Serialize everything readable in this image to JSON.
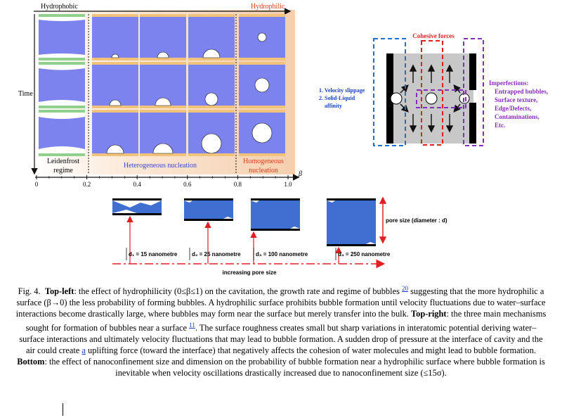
{
  "top_left": {
    "label_left": "Hydrophobic",
    "label_right": "Hydrophilic",
    "y_label": "Time",
    "regimes": [
      "Leidenfrost regime",
      "Heterogeneous nucleation",
      "Homogeneous nucleation"
    ],
    "axis_ticks": [
      "0",
      "0.2",
      "0.4",
      "0.6",
      "0.8",
      "1.0"
    ],
    "axis_symbol": "β"
  },
  "top_right": {
    "title": "Cohesive forces",
    "left_notes": [
      "1. Velocity slippage",
      "2. Solid-Liquid",
      "affinity"
    ],
    "imperfections_title": "Imperfections:",
    "imperfections": [
      "Entrapped bubbles,",
      "Surface texture,",
      "Edge/Defects,",
      "Contaminations,",
      "Etc."
    ]
  },
  "bottom": {
    "pore_label": "pore size (diameter : d)",
    "diameters": [
      "d₁ = 15 nanometre",
      "d₂ = 25 nanometre",
      "d₃ = 100 nanometre",
      "d₄ = 250 nanometre"
    ],
    "axis_label": "increasing pore size"
  },
  "caption": {
    "prefix": "Fig. 4.",
    "top_left_heading": "Top-left",
    "part1": ": the effect of hydrophilicity (0≤β≤1) on the cavitation, the growth rate and regime of bubbles ",
    "ref1": "20",
    "part2": " suggesting that the more hydrophilic a surface (β→0) the less probability of forming bubbles. A hydrophilic surface prohibits bubble formation until velocity fluctuations due to water–surface interactions become drastically large, where bubbles may form near the surface but merely transfer into the bulk. ",
    "top_right_heading": "Top-right",
    "part3": ": the three main mechanisms sought for formation of bubbles near a surface ",
    "ref2": "11",
    "part4": ". The surface roughness creates small but sharp variations in interatomic potential deriving water–surface interactions and ultimately velocity fluctuations that may lead to bubble formation. A sudden drop of pressure at the interface of cavity and the air could create ",
    "link_word": "a",
    "part5": " uplifting force (toward the interface) that negatively affects the cohesion of water molecules and might lead to bubble formation. ",
    "bottom_heading": "Bottom",
    "part6": ": the effect of nanoconfinement size and dimension on the probability of bubble formation near a hydrophilic surface where bubble formation is inevitable when velocity oscillations drastically increased due to nanoconfinement size (≤15σ)."
  }
}
